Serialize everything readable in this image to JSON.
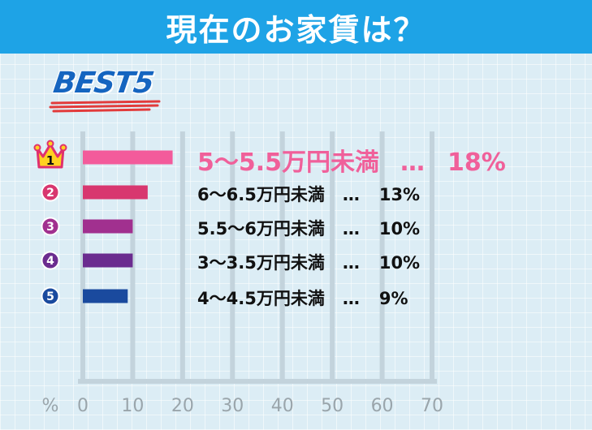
{
  "header": {
    "title": "現在のお家賃は？"
  },
  "badge": {
    "text": "BEST5"
  },
  "colors": {
    "header": "#1ea3e6",
    "rank1": "#f35b9b",
    "rank2": "#d8376f",
    "rank3": "#a1308f",
    "rank4": "#6b2c8f",
    "rank5": "#1a4a9e"
  },
  "separator": "…",
  "chart_data": {
    "type": "bar",
    "orientation": "horizontal",
    "title": "現在のお家賃は？",
    "xlabel": "%",
    "xlim": [
      0,
      70
    ],
    "xticks": [
      "0",
      "10",
      "20",
      "30",
      "40",
      "50",
      "60",
      "70"
    ],
    "grid": true,
    "categories": [
      "5〜5.5万円未満",
      "6〜6.5万円未満",
      "5.5〜6万円未満",
      "3〜3.5万円未満",
      "4〜4.5万円未満"
    ],
    "values": [
      18,
      13,
      10,
      10,
      9
    ],
    "value_labels": [
      "18%",
      "13%",
      "10%",
      "10%",
      "9%"
    ],
    "ranks": [
      "1",
      "2",
      "3",
      "4",
      "5"
    ]
  }
}
